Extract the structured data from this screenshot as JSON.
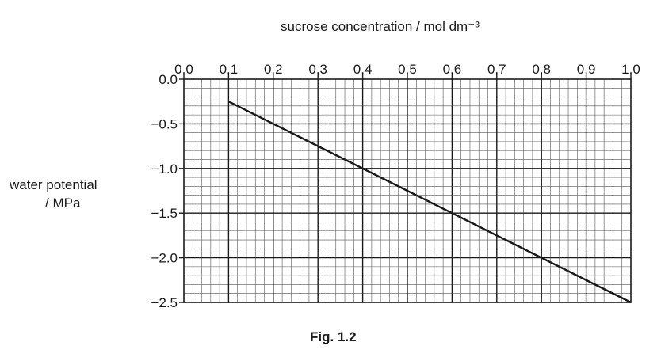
{
  "chart_data": {
    "type": "line",
    "xlabel": "sucrose concentration / mol dm⁻³",
    "ylabel": [
      "water potential",
      "/ MPa"
    ],
    "caption": "Fig. 1.2",
    "xlim": [
      0.0,
      1.0
    ],
    "ylim": [
      -2.5,
      0.0
    ],
    "x_ticks": [
      "0.0",
      "0.1",
      "0.2",
      "0.3",
      "0.4",
      "0.5",
      "0.6",
      "0.7",
      "0.8",
      "0.9",
      "1.0"
    ],
    "y_ticks": [
      "0.0",
      "−0.5",
      "−1.0",
      "−1.5",
      "−2.0",
      "−2.5"
    ],
    "x_axis_position": "top",
    "grid": true,
    "series": [
      {
        "x": [
          0.1,
          1.0
        ],
        "y": [
          -0.25,
          -2.5
        ]
      }
    ]
  }
}
